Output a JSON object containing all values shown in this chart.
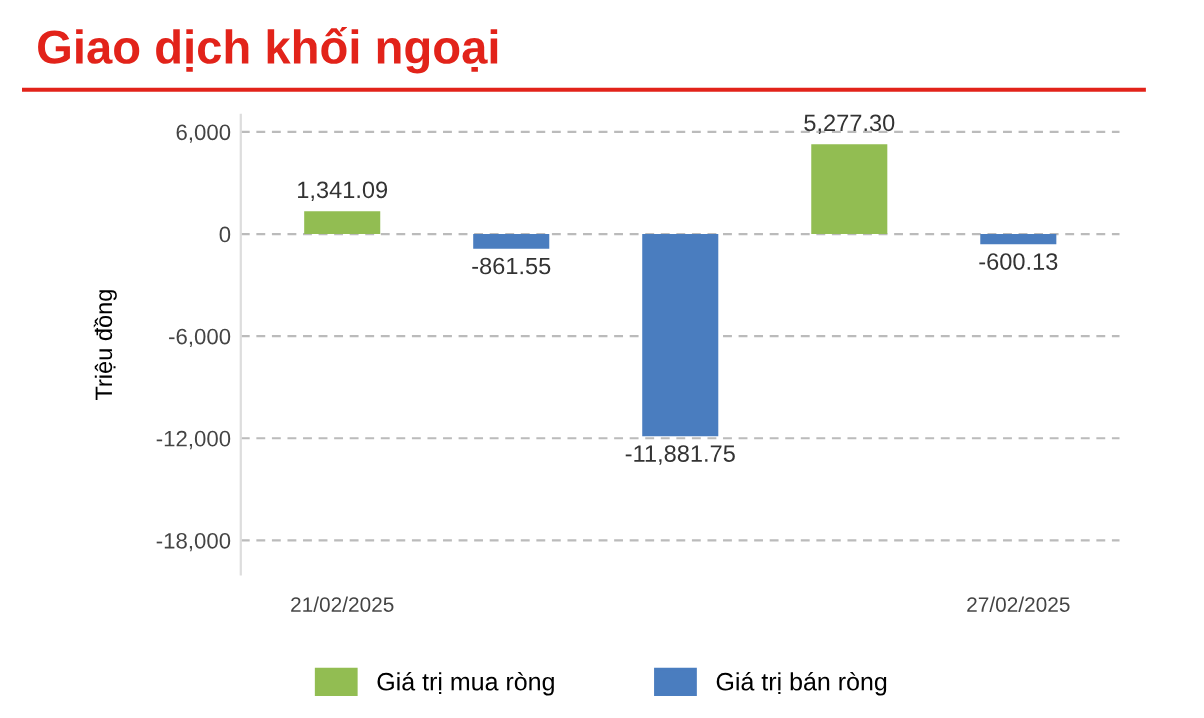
{
  "chart_data": {
    "type": "bar",
    "title": "Giao dịch khối ngoại",
    "ylabel": "Triệu đồng",
    "categories": [
      "21/02/2025",
      null,
      null,
      null,
      "27/02/2025"
    ],
    "stacked": true,
    "series": [
      {
        "name": "Giá trị mua ròng",
        "color": "#92bd52",
        "values": [
          1341.09,
          null,
          null,
          5277.3,
          null
        ],
        "value_labels": [
          "1,341.09",
          null,
          null,
          "5,277.30",
          null
        ]
      },
      {
        "name": "Giá trị bán ròng",
        "color": "#4a7dbf",
        "values": [
          null,
          -861.55,
          -11881.75,
          null,
          -600.13
        ],
        "value_labels": [
          null,
          "-861.55",
          "-11,881.75",
          null,
          "-600.13"
        ]
      }
    ],
    "ylim": [
      -20000,
      7000
    ],
    "yticks": [
      {
        "value": 6000,
        "label": "6,000"
      },
      0,
      {
        "value": -6000,
        "label": "-6,000"
      },
      {
        "value": -12000,
        "label": "-12,000"
      },
      {
        "value": -18000,
        "label": "-18,000"
      }
    ],
    "grid": "y",
    "legend": "bottom"
  }
}
